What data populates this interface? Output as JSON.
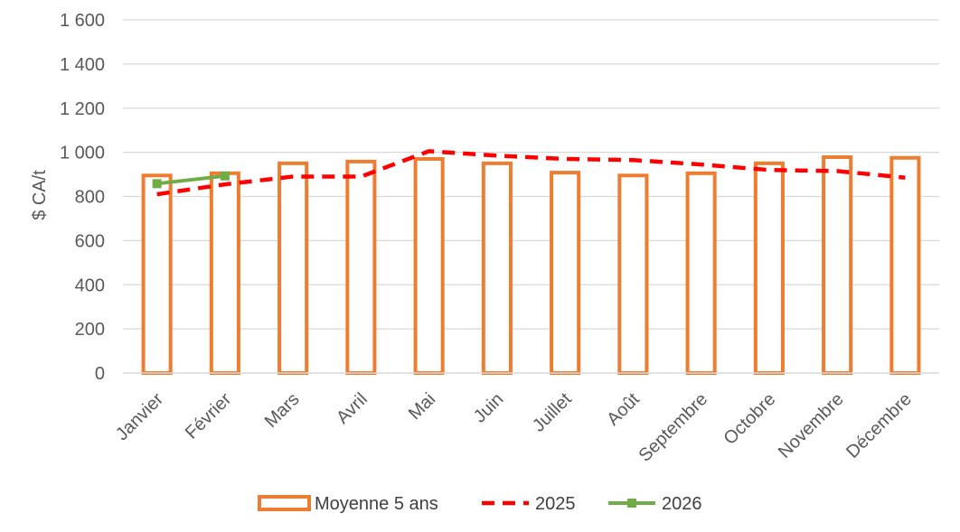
{
  "chart_data": {
    "type": "bar",
    "ylabel": "$ CA/t",
    "ylim": [
      0,
      1600
    ],
    "yticks": [
      0,
      200,
      400,
      600,
      800,
      1000,
      1200,
      1400,
      1600
    ],
    "ytick_labels": [
      "0",
      "200",
      "400",
      "600",
      "800",
      "1 000",
      "1 200",
      "1 400",
      "1 600"
    ],
    "grid": true,
    "legend_position": "bottom",
    "categories": [
      "Janvier",
      "Février",
      "Mars",
      "Avril",
      "Mai",
      "Juin",
      "Juillet",
      "Août",
      "Septembre",
      "Octobre",
      "Novembre",
      "Décembre"
    ],
    "series": [
      {
        "name": "Moyenne 5 ans",
        "type": "bar",
        "style": "hollow",
        "color": "#ED7D31",
        "values": [
          895,
          905,
          950,
          958,
          970,
          950,
          908,
          895,
          905,
          950,
          978,
          975
        ]
      },
      {
        "name": "2025",
        "type": "line",
        "style": "dashed",
        "color": "#FF0000",
        "values": [
          810,
          855,
          890,
          890,
          1005,
          985,
          970,
          965,
          945,
          920,
          915,
          885
        ]
      },
      {
        "name": "2026",
        "type": "line",
        "style": "solid-square-markers",
        "color": "#70AD47",
        "values": [
          858,
          893,
          null,
          null,
          null,
          null,
          null,
          null,
          null,
          null,
          null,
          null
        ]
      }
    ]
  }
}
